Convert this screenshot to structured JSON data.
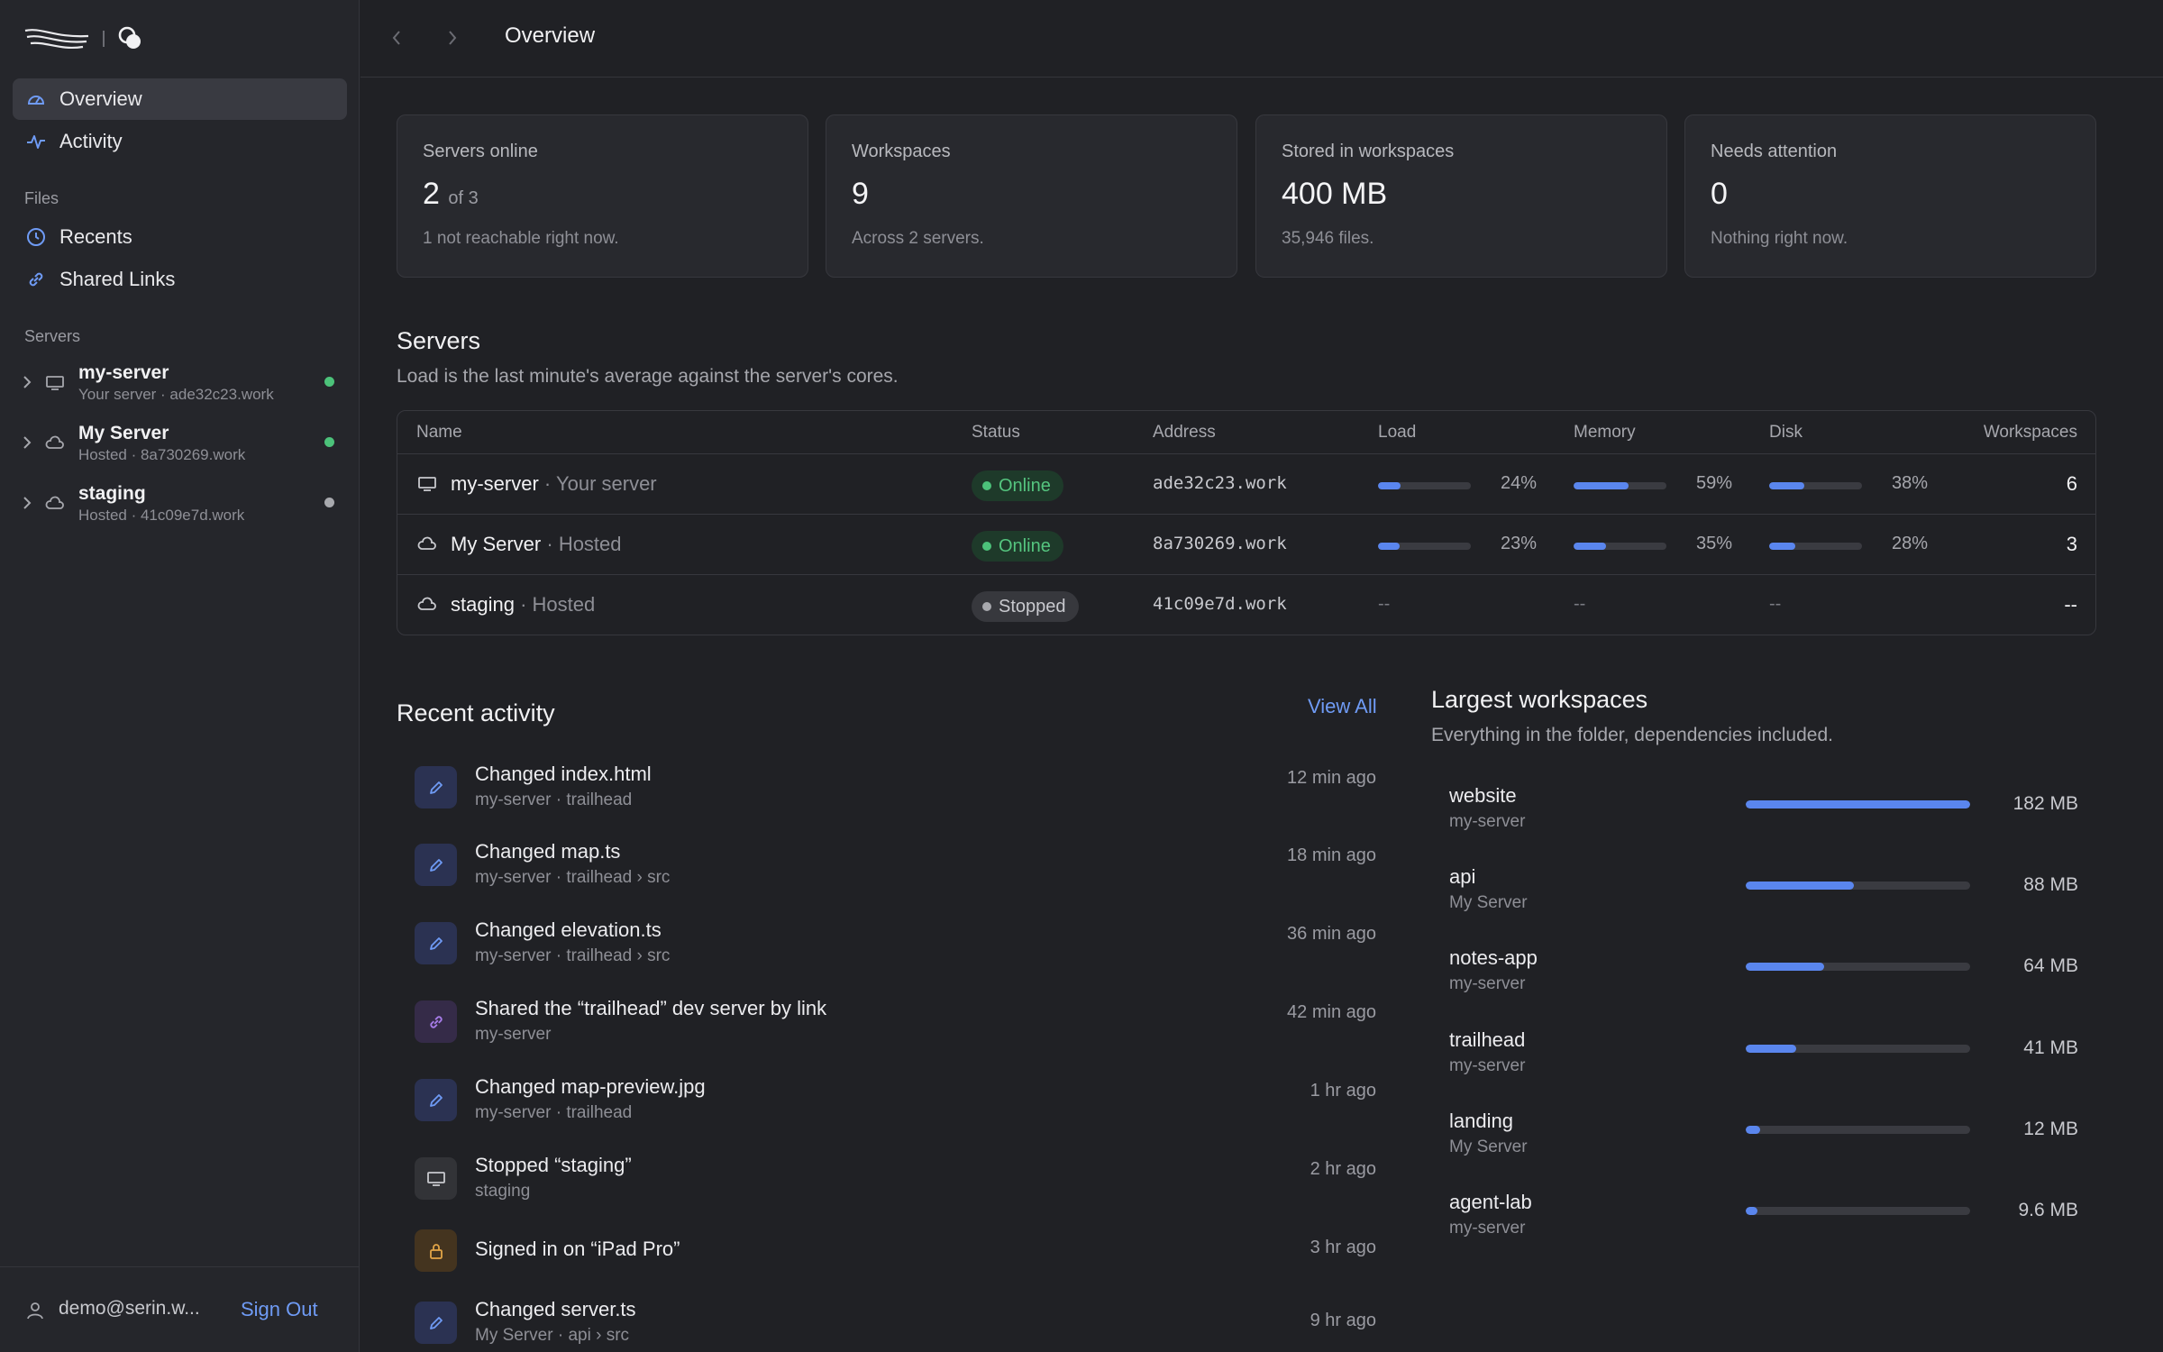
{
  "sidebar": {
    "nav": [
      {
        "label": "Overview",
        "icon": "gauge-icon",
        "active": true
      },
      {
        "label": "Activity",
        "icon": "pulse-icon",
        "active": false
      }
    ],
    "files_label": "Files",
    "files": [
      {
        "label": "Recents",
        "icon": "clock-icon"
      },
      {
        "label": "Shared Links",
        "icon": "link-icon"
      }
    ],
    "servers_label": "Servers",
    "servers": [
      {
        "name": "my-server",
        "sub": "Your server · ade32c23.work",
        "icon": "monitor-icon",
        "status": "online"
      },
      {
        "name": "My Server",
        "sub": "Hosted · 8a730269.work",
        "icon": "cloud-icon",
        "status": "online"
      },
      {
        "name": "staging",
        "sub": "Hosted · 41c09e7d.work",
        "icon": "cloud-icon",
        "status": "stopped"
      }
    ],
    "user_email": "demo@serin.w...",
    "sign_out": "Sign Out"
  },
  "topbar": {
    "title": "Overview"
  },
  "stats": [
    {
      "label": "Servers online",
      "value": "2",
      "value_suffix": "of 3",
      "note": "1 not reachable right now."
    },
    {
      "label": "Workspaces",
      "value": "9",
      "value_suffix": "",
      "note": "Across 2 servers."
    },
    {
      "label": "Stored in workspaces",
      "value": "400 MB",
      "value_suffix": "",
      "note": "35,946 files."
    },
    {
      "label": "Needs attention",
      "value": "0",
      "value_suffix": "",
      "note": "Nothing right now."
    }
  ],
  "servers_section": {
    "title": "Servers",
    "description": "Load is the last minute's average against the server's cores.",
    "columns": [
      "Name",
      "Status",
      "Address",
      "Load",
      "Memory",
      "Disk",
      "Workspaces"
    ],
    "rows": [
      {
        "name": "my-server",
        "kind": "· Your server",
        "icon": "monitor-icon",
        "status": "Online",
        "address": "ade32c23.work",
        "load": "24%",
        "load_frac": 0.24,
        "memory": "59%",
        "memory_frac": 0.59,
        "disk": "38%",
        "disk_frac": 0.38,
        "workspaces": "6"
      },
      {
        "name": "My Server",
        "kind": "· Hosted",
        "icon": "cloud-icon",
        "status": "Online",
        "address": "8a730269.work",
        "load": "23%",
        "load_frac": 0.23,
        "memory": "35%",
        "memory_frac": 0.35,
        "disk": "28%",
        "disk_frac": 0.28,
        "workspaces": "3"
      },
      {
        "name": "staging",
        "kind": "· Hosted",
        "icon": "cloud-icon",
        "status": "Stopped",
        "address": "41c09e7d.work",
        "load": "--",
        "memory": "--",
        "disk": "--",
        "workspaces": "--"
      }
    ]
  },
  "activity": {
    "title": "Recent activity",
    "view_all": "View All",
    "items": [
      {
        "title": "Changed index.html",
        "sub": "my-server · trailhead",
        "time": "12 min ago",
        "icon": "pencil-icon"
      },
      {
        "title": "Changed map.ts",
        "sub": "my-server · trailhead › src",
        "time": "18 min ago",
        "icon": "pencil-icon"
      },
      {
        "title": "Changed elevation.ts",
        "sub": "my-server · trailhead › src",
        "time": "36 min ago",
        "icon": "pencil-icon"
      },
      {
        "title": "Shared the “trailhead” dev server by link",
        "sub": "my-server",
        "time": "42 min ago",
        "icon": "link-icon"
      },
      {
        "title": "Changed map-preview.jpg",
        "sub": "my-server · trailhead",
        "time": "1 hr ago",
        "icon": "pencil-icon"
      },
      {
        "title": "Stopped “staging”",
        "sub": "staging",
        "time": "2 hr ago",
        "icon": "monitor-icon"
      },
      {
        "title": "Signed in on “iPad Pro”",
        "sub": "",
        "time": "3 hr ago",
        "icon": "lock-icon"
      },
      {
        "title": "Changed server.ts",
        "sub": "My Server · api › src",
        "time": "9 hr ago",
        "icon": "pencil-icon"
      }
    ]
  },
  "workspaces": {
    "title": "Largest workspaces",
    "description": "Everything in the folder, dependencies included.",
    "items": [
      {
        "name": "website",
        "server": "my-server",
        "size": "182 MB",
        "frac": 1.0
      },
      {
        "name": "api",
        "server": "My Server",
        "size": "88 MB",
        "frac": 0.48
      },
      {
        "name": "notes-app",
        "server": "my-server",
        "size": "64 MB",
        "frac": 0.35
      },
      {
        "name": "trailhead",
        "server": "my-server",
        "size": "41 MB",
        "frac": 0.225
      },
      {
        "name": "landing",
        "server": "My Server",
        "size": "12 MB",
        "frac": 0.066
      },
      {
        "name": "agent-lab",
        "server": "my-server",
        "size": "9.6 MB",
        "frac": 0.053
      }
    ]
  },
  "colors": {
    "accent": "#5a86ee",
    "online": "#4cc27a",
    "stopped": "#a8a9ae",
    "link": "#6f9bf5"
  }
}
